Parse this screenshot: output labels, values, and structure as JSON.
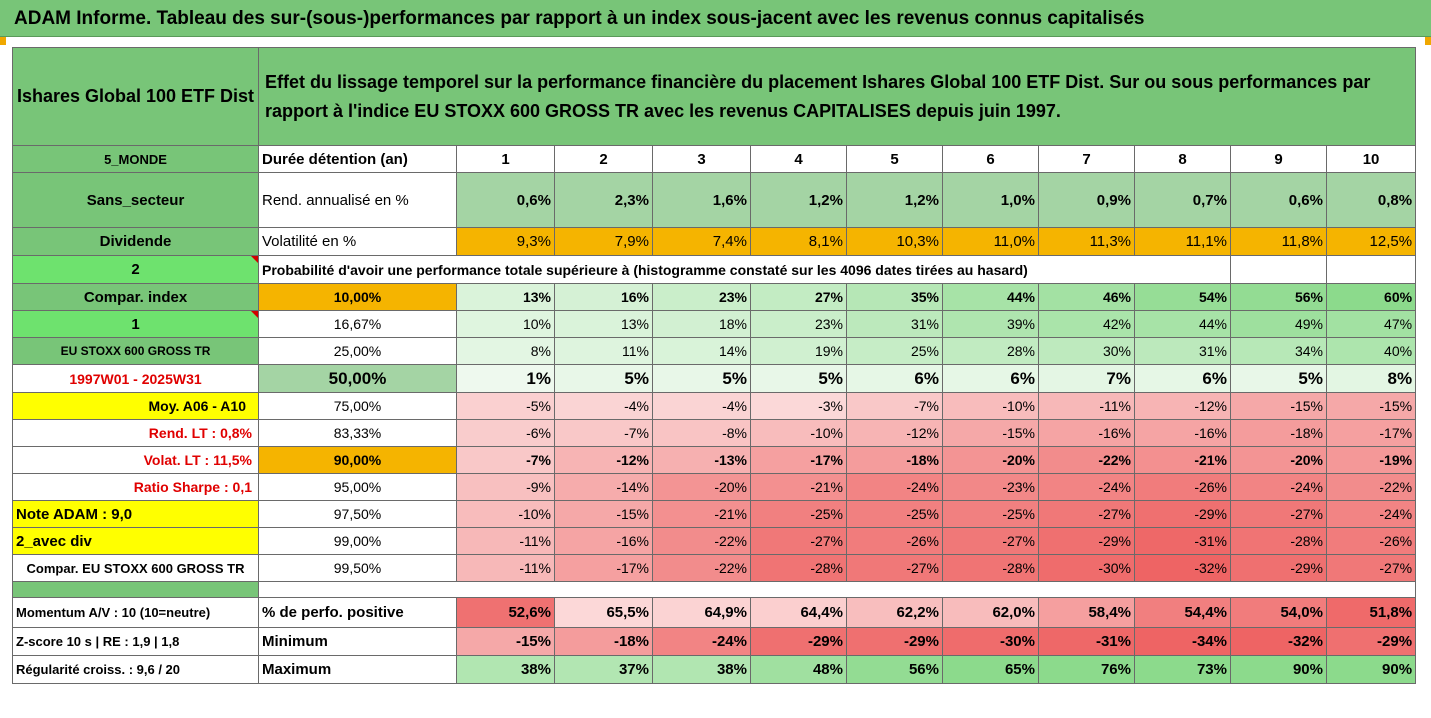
{
  "title": "ADAM Informe. Tableau des sur-(sous-)performances par rapport à un index sous-jacent avec les revenus connus capitalisés",
  "fund_name": "Ishares Global 100 ETF Dist",
  "description": "Effet du lissage temporel sur la performance financière du placement Ishares Global 100 ETF Dist. Sur ou sous performances par rapport à l'indice EU STOXX 600 GROSS TR avec les revenus CAPITALISES depuis juin 1997.",
  "colors": {
    "green_header": "#78c578",
    "light_green": "#a4d4a4",
    "bright_green": "#6ee26e",
    "yellow": "#ffff00",
    "orange": "#f5b400",
    "red_text": "#e00000"
  },
  "header_row": {
    "left": "5_MONDE",
    "label": "Durée détention (an)",
    "years": [
      "1",
      "2",
      "3",
      "4",
      "5",
      "6",
      "7",
      "8",
      "9",
      "10"
    ]
  },
  "rend_row": {
    "left": "Sans_secteur",
    "label": "Rend. annualisé en %",
    "values": [
      "0,6%",
      "2,3%",
      "1,6%",
      "1,2%",
      "1,2%",
      "1,0%",
      "0,9%",
      "0,7%",
      "0,6%",
      "0,8%"
    ]
  },
  "vol_row": {
    "left": "Dividende",
    "label": "Volatilité en %",
    "values": [
      "9,3%",
      "7,9%",
      "7,4%",
      "8,1%",
      "10,3%",
      "11,0%",
      "11,3%",
      "11,1%",
      "11,8%",
      "12,5%"
    ]
  },
  "prob_row": {
    "left": "2",
    "text": "Probabilité d'avoir une performance totale supérieure à (histogramme constaté sur les 4096 dates tirées au hasard)"
  },
  "prob_rows": [
    {
      "left": "Compar. index",
      "threshold": "10,00%",
      "values": [
        "13%",
        "16%",
        "23%",
        "27%",
        "35%",
        "44%",
        "46%",
        "54%",
        "56%",
        "60%"
      ]
    },
    {
      "left": "1",
      "threshold": "16,67%",
      "values": [
        "10%",
        "13%",
        "18%",
        "23%",
        "31%",
        "39%",
        "42%",
        "44%",
        "49%",
        "47%"
      ]
    },
    {
      "left": "EU STOXX 600 GROSS TR",
      "threshold": "25,00%",
      "values": [
        "8%",
        "11%",
        "14%",
        "19%",
        "25%",
        "28%",
        "30%",
        "31%",
        "34%",
        "40%"
      ]
    },
    {
      "left": "1997W01 - 2025W31",
      "threshold": "50,00%",
      "values": [
        "1%",
        "5%",
        "5%",
        "5%",
        "6%",
        "6%",
        "7%",
        "6%",
        "5%",
        "8%"
      ]
    },
    {
      "left": "Moy. A06 - A10",
      "threshold": "75,00%",
      "values": [
        "-5%",
        "-4%",
        "-4%",
        "-3%",
        "-7%",
        "-10%",
        "-11%",
        "-12%",
        "-15%",
        "-15%"
      ]
    },
    {
      "left": "Rend. LT :   0,8%",
      "threshold": "83,33%",
      "values": [
        "-6%",
        "-7%",
        "-8%",
        "-10%",
        "-12%",
        "-15%",
        "-16%",
        "-16%",
        "-18%",
        "-17%"
      ]
    },
    {
      "left": "Volat. LT :   11,5%",
      "threshold": "90,00%",
      "values": [
        "-7%",
        "-12%",
        "-13%",
        "-17%",
        "-18%",
        "-20%",
        "-22%",
        "-21%",
        "-20%",
        "-19%"
      ]
    },
    {
      "left": "Ratio Sharpe :   0,1",
      "threshold": "95,00%",
      "values": [
        "-9%",
        "-14%",
        "-20%",
        "-21%",
        "-24%",
        "-23%",
        "-24%",
        "-26%",
        "-24%",
        "-22%"
      ]
    },
    {
      "left": "Note ADAM : 9,0",
      "threshold": "97,50%",
      "values": [
        "-10%",
        "-15%",
        "-21%",
        "-25%",
        "-25%",
        "-25%",
        "-27%",
        "-29%",
        "-27%",
        "-24%"
      ]
    },
    {
      "left": "2_avec div",
      "threshold": "99,00%",
      "values": [
        "-11%",
        "-16%",
        "-22%",
        "-27%",
        "-26%",
        "-27%",
        "-29%",
        "-31%",
        "-28%",
        "-26%"
      ]
    },
    {
      "left": "Compar. EU STOXX 600 GROSS TR",
      "threshold": "99,50%",
      "values": [
        "-11%",
        "-17%",
        "-22%",
        "-28%",
        "-27%",
        "-28%",
        "-30%",
        "-32%",
        "-29%",
        "-27%"
      ]
    }
  ],
  "bottom_rows": [
    {
      "left": "Momentum A/V : 10 (10=neutre)",
      "label": "% de perfo. positive",
      "values": [
        "52,6%",
        "65,5%",
        "64,9%",
        "64,4%",
        "62,2%",
        "62,0%",
        "58,4%",
        "54,4%",
        "54,0%",
        "51,8%"
      ]
    },
    {
      "left": "Z-score 10 s  | RE : 1,9 | 1,8",
      "label": "Minimum",
      "values": [
        "-15%",
        "-18%",
        "-24%",
        "-29%",
        "-29%",
        "-30%",
        "-31%",
        "-34%",
        "-32%",
        "-29%"
      ]
    },
    {
      "left": "Régularité croiss. : 9,6 / 20",
      "label": "Maximum",
      "values": [
        "38%",
        "37%",
        "38%",
        "48%",
        "56%",
        "65%",
        "76%",
        "73%",
        "90%",
        "90%"
      ]
    }
  ]
}
